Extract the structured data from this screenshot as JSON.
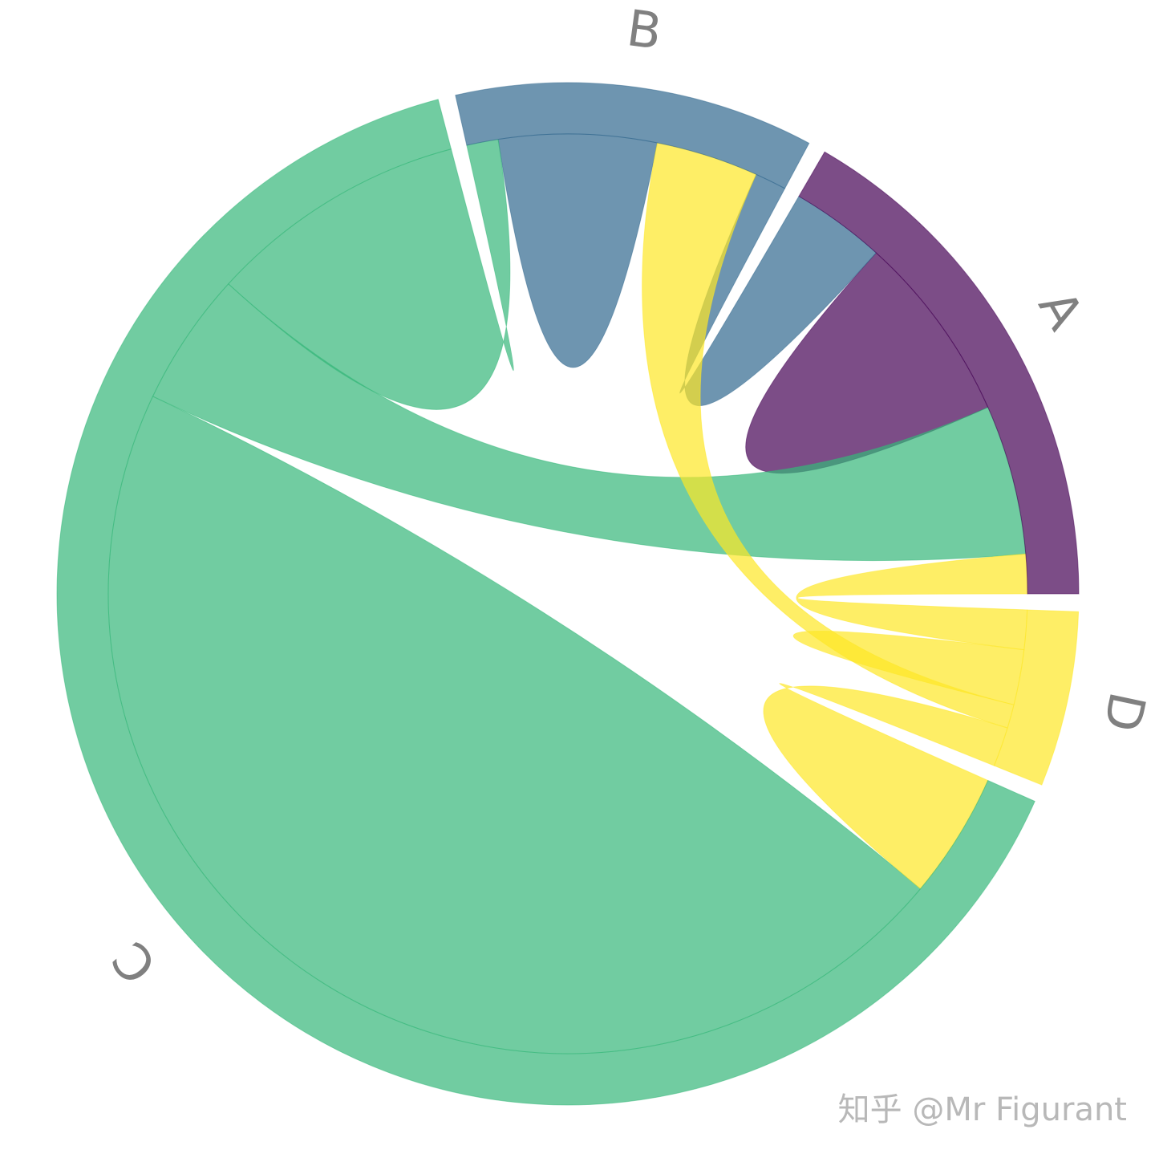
{
  "chart_data": {
    "type": "chord",
    "groups": [
      "A",
      "B",
      "C",
      "D"
    ],
    "colors": [
      "#440154",
      "#31688e",
      "#35b779",
      "#fde725"
    ],
    "matrix": [
      [
        24,
        12,
        19,
        5
      ],
      [
        4,
        20,
        4,
        13
      ],
      [
        17,
        33,
        166,
        16
      ],
      [
        5,
        3,
        5,
        7
      ]
    ],
    "watermark": "知乎 @Mr Figurant"
  }
}
